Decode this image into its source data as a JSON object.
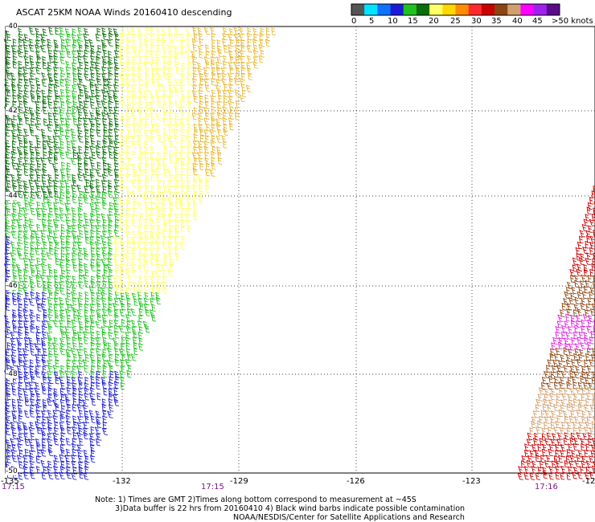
{
  "title": "ASCAT 25KM NOAA Winds 20160410 descending",
  "colorbar": {
    "colors": [
      "#555555",
      "#00e5ff",
      "#0a74ff",
      "#1b1bd6",
      "#1fc31f",
      "#0a6e0a",
      "#ffff66",
      "#ffd700",
      "#ff8c00",
      "#ff2b2b",
      "#cc0000",
      "#8b4513",
      "#d2a06e",
      "#ff00ff",
      "#a020f0",
      "#5a0a8a"
    ],
    "labels": [
      "0",
      "5",
      "10",
      "15",
      "20",
      "25",
      "30",
      "35",
      "40",
      "45",
      ">50 knots"
    ]
  },
  "axes": {
    "lon_labels": [
      "-135",
      "-132",
      "-129",
      "-126",
      "-123",
      "-12"
    ],
    "lat_labels": [
      "-40",
      "-42",
      "-44",
      "-46",
      "-48",
      "-50"
    ]
  },
  "times": [
    "17:15",
    "17:15",
    "17:16"
  ],
  "notes": [
    "Note: 1) Times are GMT 2)Times along bottom correspond to measurement at ~45S",
    "3)Data buffer is 22 hrs from 20160410 4) Black wind barbs indicate possible contamination",
    "NOAA/NESDIS/Center for Satellite Applications and Research"
  ]
}
